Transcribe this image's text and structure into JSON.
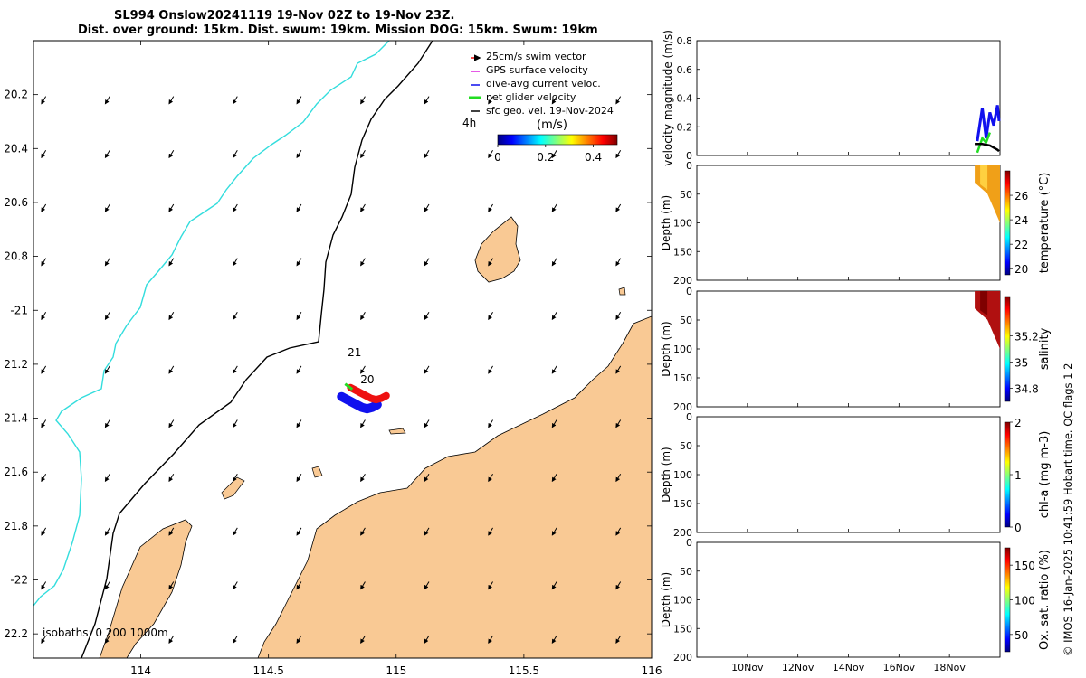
{
  "header": {
    "title_line1": "SL994 Onslow20241119 19-Nov 02Z to 19-Nov 23Z.",
    "title_line2": "Dist. over ground: 15km. Dist. swum: 19km. Mission DOG: 15km. Swum: 19km"
  },
  "credit": "© IMOS 16-Jan-2025 10:41:59 Hobart time. QC flags 1  2",
  "colors": {
    "land": "#f9c994",
    "isobath_0": "#000000",
    "isobath_200": "#000000",
    "isobath_1000": "#33dddd",
    "swim_vector": "#ee1111",
    "gps_velocity": "#dd22dd",
    "dive_avg_current": "#1111ee",
    "net_glider_velocity": "#22dd22",
    "geostrophic": "#000000"
  },
  "chart_data": [
    {
      "id": "map",
      "type": "scatter",
      "xlim": [
        113.58,
        116.0
      ],
      "ylim": [
        -22.29,
        -20.0
      ],
      "x_ticks": [
        114,
        114.5,
        115,
        115.5,
        116
      ],
      "x_tick_labels": [
        "114",
        "114.5",
        "115",
        "115.5",
        "116"
      ],
      "y_ticks": [
        -20.2,
        -20.4,
        -20.6,
        -20.8,
        -21,
        -21.2,
        -21.4,
        -21.6,
        -21.8,
        -22,
        -22.2
      ],
      "y_tick_labels": [
        "20.2",
        "20.4",
        "20.6",
        "20.8",
        "-21",
        "21.2",
        "21.4",
        "21.6",
        "21.8",
        "-22",
        "22.2"
      ],
      "legend": [
        "25cm/s swim vector",
        "GPS surface velocity",
        "dive-avg current veloc.",
        "net glider velocity",
        "sfc geo. vel. 19-Nov-2024"
      ],
      "legend_position": "top-right",
      "colorbar": {
        "label": "(m/s)",
        "range": [
          0,
          0.5
        ],
        "ticks": [
          0,
          0.2,
          0.4
        ],
        "tick_labels": [
          "0",
          "0.2",
          "0.4"
        ],
        "side_label": "4h"
      },
      "isobaths_label": "isobaths: 0   200  1000m",
      "track_labels": [
        {
          "text": "21",
          "lon": 114.81,
          "lat": -21.17
        },
        {
          "text": "20",
          "lon": 114.86,
          "lat": -21.27
        }
      ],
      "glider_track": [
        [
          114.8,
          -21.3
        ],
        [
          114.83,
          -21.315
        ],
        [
          114.86,
          -21.33
        ],
        [
          114.88,
          -21.34
        ],
        [
          114.9,
          -21.345
        ],
        [
          114.92,
          -21.34
        ],
        [
          114.94,
          -21.33
        ]
      ],
      "geo_vectors": {
        "u": -0.03,
        "v": -0.05,
        "grid_lon_step": 0.25,
        "grid_lat_step": 0.2
      }
    },
    {
      "id": "velocity-magnitude",
      "type": "line",
      "ylabel": "velocity magnitude (m/s)",
      "ylim": [
        0,
        0.8
      ],
      "y_ticks": [
        0,
        0.2,
        0.4,
        0.6,
        0.8
      ],
      "y_tick_labels": [
        "0",
        "0.2",
        "0.4",
        "0.6",
        "0.8"
      ],
      "xlim_days": [
        8.0,
        20.0
      ],
      "series": [
        {
          "color": "#1111ee",
          "x": [
            19.1,
            19.3,
            19.45,
            19.6,
            19.75,
            19.9,
            20.0
          ],
          "values": [
            0.1,
            0.33,
            0.12,
            0.3,
            0.21,
            0.35,
            0.24
          ]
        },
        {
          "color": "#22dd22",
          "x": [
            19.1,
            19.3,
            19.45,
            19.6
          ],
          "values": [
            0.02,
            0.12,
            0.09,
            0.16
          ]
        },
        {
          "color": "#000000",
          "x": [
            19.0,
            19.3,
            19.6,
            19.9,
            20.0
          ],
          "values": [
            0.08,
            0.08,
            0.07,
            0.04,
            0.03
          ]
        }
      ]
    },
    {
      "id": "temperature",
      "type": "heatmap",
      "ylabel": "Depth (m)",
      "ylim": [
        200,
        0
      ],
      "y_ticks": [
        0,
        50,
        100,
        150,
        200
      ],
      "colorbar_label": "temperature (°C)",
      "colorbar_range": [
        19.5,
        28
      ],
      "colorbar_ticks": [
        20,
        22,
        24,
        26
      ],
      "profile_region": {
        "x": [
          19.0,
          20.0
        ],
        "max_depth": [
          30,
          100
        ],
        "value": 26.3
      }
    },
    {
      "id": "salinity",
      "type": "heatmap",
      "ylabel": "Depth (m)",
      "ylim": [
        200,
        0
      ],
      "y_ticks": [
        0,
        50,
        100,
        150,
        200
      ],
      "colorbar_label": "salinity",
      "colorbar_range": [
        34.7,
        35.5
      ],
      "colorbar_ticks": [
        34.8,
        35,
        35.2
      ],
      "profile_region": {
        "x": [
          19.0,
          20.0
        ],
        "max_depth": [
          30,
          100
        ],
        "value": 35.45
      }
    },
    {
      "id": "chlorophyll",
      "type": "heatmap",
      "ylabel": "Depth (m)",
      "ylim": [
        200,
        0
      ],
      "y_ticks": [
        0,
        50,
        100,
        150,
        200
      ],
      "colorbar_label": "chl-a (mg m-3)",
      "colorbar_range": [
        0,
        2
      ],
      "colorbar_ticks": [
        0,
        1,
        2
      ]
    },
    {
      "id": "oxygen",
      "type": "heatmap",
      "ylabel": "Depth (m)",
      "ylim": [
        200,
        0
      ],
      "y_ticks": [
        0,
        50,
        100,
        150,
        200
      ],
      "colorbar_label": "Ox. sat. ratio (%)",
      "colorbar_range": [
        25,
        175
      ],
      "colorbar_ticks": [
        50,
        100,
        150
      ],
      "x_ticks": [
        10,
        12,
        14,
        16,
        18
      ],
      "x_tick_labels": [
        "10Nov",
        "12Nov",
        "14Nov",
        "16Nov",
        "18Nov"
      ]
    }
  ]
}
